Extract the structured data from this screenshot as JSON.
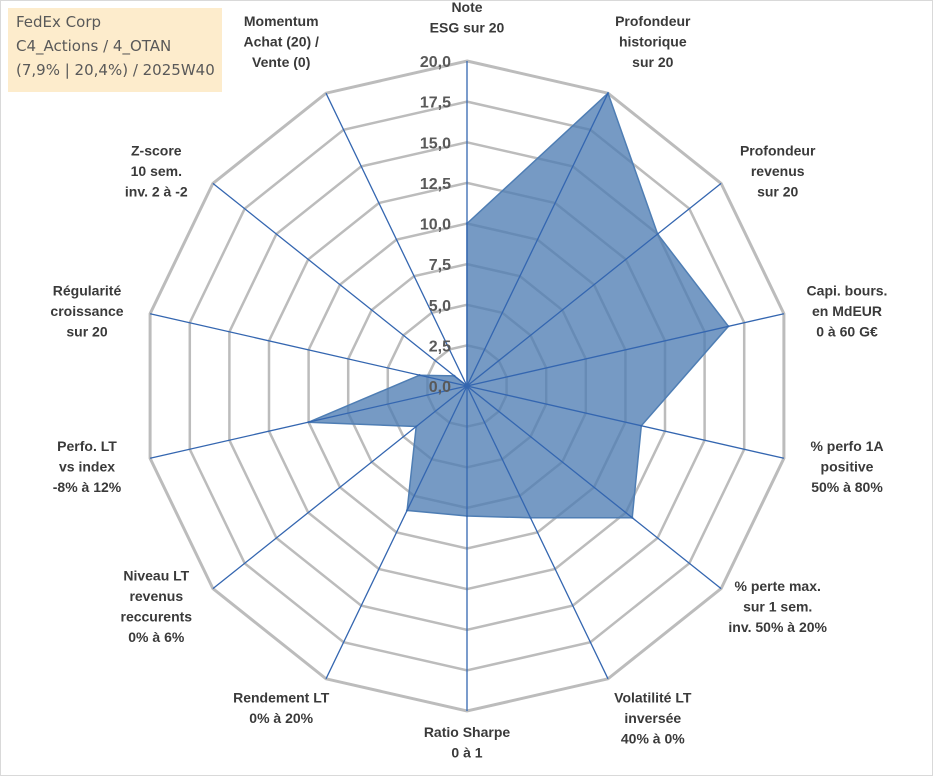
{
  "chart_data": {
    "type": "radar",
    "title_lines": [
      "FedEx Corp",
      "C4_Actions / 4_OTAN",
      "(7,9% | 20,4%) / 2025W40"
    ],
    "rmin": 0,
    "rmax": 20,
    "ticks": [
      "0,0",
      "2,5",
      "5,0",
      "7,5",
      "10,0",
      "12,5",
      "15,0",
      "17,5",
      "20,0"
    ],
    "tick_values": [
      0,
      2.5,
      5,
      7.5,
      10,
      12.5,
      15,
      17.5,
      20
    ],
    "axes": [
      {
        "label": [
          "Note",
          "ESG sur 20"
        ],
        "value": 10
      },
      {
        "label": [
          "Profondeur",
          "historique",
          "sur 20"
        ],
        "value": 20
      },
      {
        "label": [
          "Profondeur",
          "revenus",
          "sur 20"
        ],
        "value": 15
      },
      {
        "label": [
          "Capi. bours.",
          "en MdEUR",
          "0 à 60 G€"
        ],
        "value": 16.5
      },
      {
        "label": [
          "% perfo 1A",
          "positive",
          "50% à 80%"
        ],
        "value": 11
      },
      {
        "label": [
          "% perte max.",
          "sur 1 sem.",
          "inv. 50% à 20%"
        ],
        "value": 13
      },
      {
        "label": [
          "Volatilité LT",
          "inversée",
          "40% à 0%"
        ],
        "value": 9
      },
      {
        "label": [
          "Ratio Sharpe",
          "0 à 1"
        ],
        "value": 8
      },
      {
        "label": [
          "Rendement LT",
          "0% à 20%"
        ],
        "value": 8.5
      },
      {
        "label": [
          "Niveau LT",
          "revenus",
          "reccurents",
          "0% à 6%"
        ],
        "value": 4
      },
      {
        "label": [
          "Perfo. LT",
          "vs index",
          "-8% à 12%"
        ],
        "value": 10
      },
      {
        "label": [
          "Régularité",
          "croissance",
          "sur 20"
        ],
        "value": 3
      },
      {
        "label": [
          "Z-score",
          "10 sem.",
          "inv. 2 à -2"
        ],
        "value": 1
      },
      {
        "label": [
          "Momentum",
          "Achat (20) /",
          "Vente (0)"
        ],
        "value": 0
      }
    ],
    "colors": {
      "fill": "#4f7eb4",
      "fill_opacity": 0.78,
      "outline": "#bcbcbc",
      "spoke": "#3466b0",
      "tick_text": "#595959",
      "label_text": "#3a3a3a",
      "title_bg": "#fdeccc"
    },
    "legend": "none",
    "grid": true
  }
}
